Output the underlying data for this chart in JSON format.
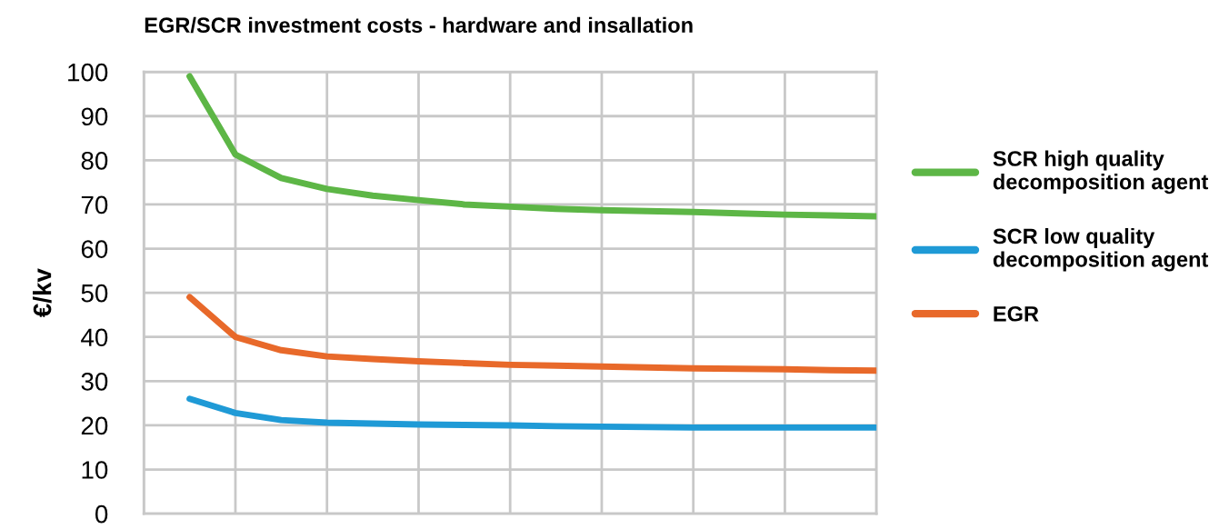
{
  "chart_data": {
    "type": "line",
    "title": "EGR/SCR investment costs - hardware and insallation",
    "ylabel": "€/kv",
    "categories": [
      null,
      null,
      null,
      null,
      null,
      null,
      null,
      null,
      null,
      null,
      null,
      null,
      null,
      null,
      null,
      null
    ],
    "series": [
      {
        "name": "SCR high quality decomposition agent",
        "color": "#5db646",
        "values": [
          99,
          81.3,
          76,
          73.5,
          72,
          71,
          70,
          69.5,
          69,
          68.7,
          68.5,
          68.3,
          68,
          67.7,
          67.5,
          67.3
        ]
      },
      {
        "name": "SCR low quality decomposition agent",
        "color": "#1f9ad6",
        "values": [
          26,
          22.8,
          21.2,
          20.6,
          20.4,
          20.2,
          20.1,
          20,
          19.8,
          19.7,
          19.6,
          19.5,
          19.5,
          19.5,
          19.5,
          19.5
        ]
      },
      {
        "name": "EGR",
        "color": "#e8692a",
        "values": [
          49,
          40,
          37,
          35.6,
          35,
          34.5,
          34.1,
          33.7,
          33.5,
          33.3,
          33.1,
          32.9,
          32.8,
          32.7,
          32.5,
          32.4
        ]
      }
    ],
    "ylim": [
      0,
      100
    ],
    "yticks": [
      0,
      10,
      20,
      30,
      40,
      50,
      60,
      70,
      80,
      90,
      100
    ],
    "grid": true,
    "legend": "right",
    "tick_labels": "y",
    "marker": "none",
    "line_style": "solid"
  }
}
